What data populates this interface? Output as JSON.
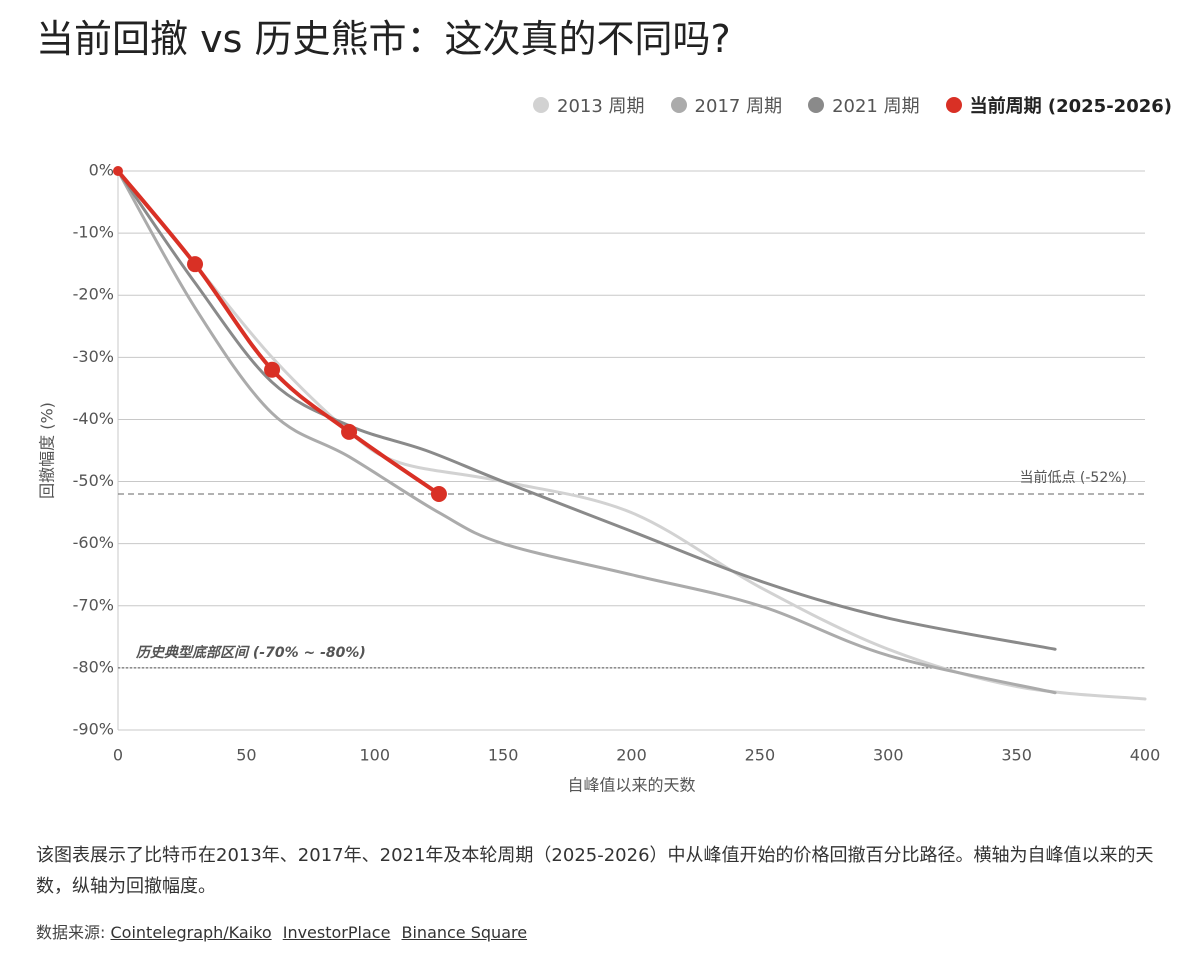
{
  "chart_data": {
    "type": "line",
    "title": "当前回撤 vs 历史熊市：这次真的不同吗?",
    "x_label": "自峰值以来的天数",
    "y_label": "回撤幅度 (%)",
    "xlim": [
      0,
      400
    ],
    "xticks": [
      0,
      50,
      100,
      150,
      200,
      250,
      300,
      350,
      400
    ],
    "ylim": [
      -90,
      0
    ],
    "yticks": [
      {
        "value": 0,
        "label": "0%"
      },
      {
        "value": -10,
        "label": "-10%"
      },
      {
        "value": -20,
        "label": "-20%"
      },
      {
        "value": -30,
        "label": "-30%"
      },
      {
        "value": -40,
        "label": "-40%"
      },
      {
        "value": -50,
        "label": "-50%"
      },
      {
        "value": -60,
        "label": "-60%"
      },
      {
        "value": -70,
        "label": "-70%"
      },
      {
        "value": -80,
        "label": "-80%"
      },
      {
        "value": -90,
        "label": "-90%"
      }
    ],
    "grid": true,
    "legend": "top-right",
    "series": [
      {
        "name": "2013 周期",
        "color": "#d2d2d2",
        "x": [
          0,
          30,
          60,
          90,
          110,
          150,
          200,
          250,
          300,
          350,
          400
        ],
        "values": [
          0,
          -15,
          -30,
          -42,
          -47,
          -50,
          -55,
          -67,
          -77,
          -83,
          -85
        ]
      },
      {
        "name": "2017 周期",
        "color": "#ababab",
        "x": [
          0,
          30,
          60,
          90,
          125,
          150,
          200,
          250,
          300,
          365
        ],
        "values": [
          0,
          -22,
          -39,
          -46,
          -55,
          -60,
          -65,
          -70,
          -78,
          -84
        ]
      },
      {
        "name": "2021 周期",
        "color": "#8a8a8a",
        "x": [
          0,
          30,
          60,
          90,
          120,
          150,
          200,
          250,
          300,
          365
        ],
        "values": [
          0,
          -18,
          -34,
          -41,
          -45,
          -50,
          -58,
          -66,
          -72,
          -77
        ]
      },
      {
        "name": "当前周期 (2025-2026)",
        "color": "#d93025",
        "x": [
          0,
          30,
          60,
          90,
          125
        ],
        "values": [
          0,
          -15,
          -32,
          -42,
          -52
        ],
        "markers": true
      }
    ],
    "reference_lines": [
      {
        "value": -52,
        "label": "当前低点 (-52%)",
        "style": "dashed"
      },
      {
        "value": -80,
        "label": "历史典型底部区间 (-70% ~ -80%)",
        "style": "dotted"
      }
    ]
  },
  "caption": "该图表展示了比特币在2013年、2017年、2021年及本轮周期（2025-2026）中从峰值开始的价格回撤百分比路径。横轴为自峰值以来的天数，纵轴为回撤幅度。",
  "sources": {
    "label": "数据来源:",
    "links": [
      "Cointelegraph/Kaiko",
      "InvestorPlace",
      "Binance Square"
    ]
  }
}
